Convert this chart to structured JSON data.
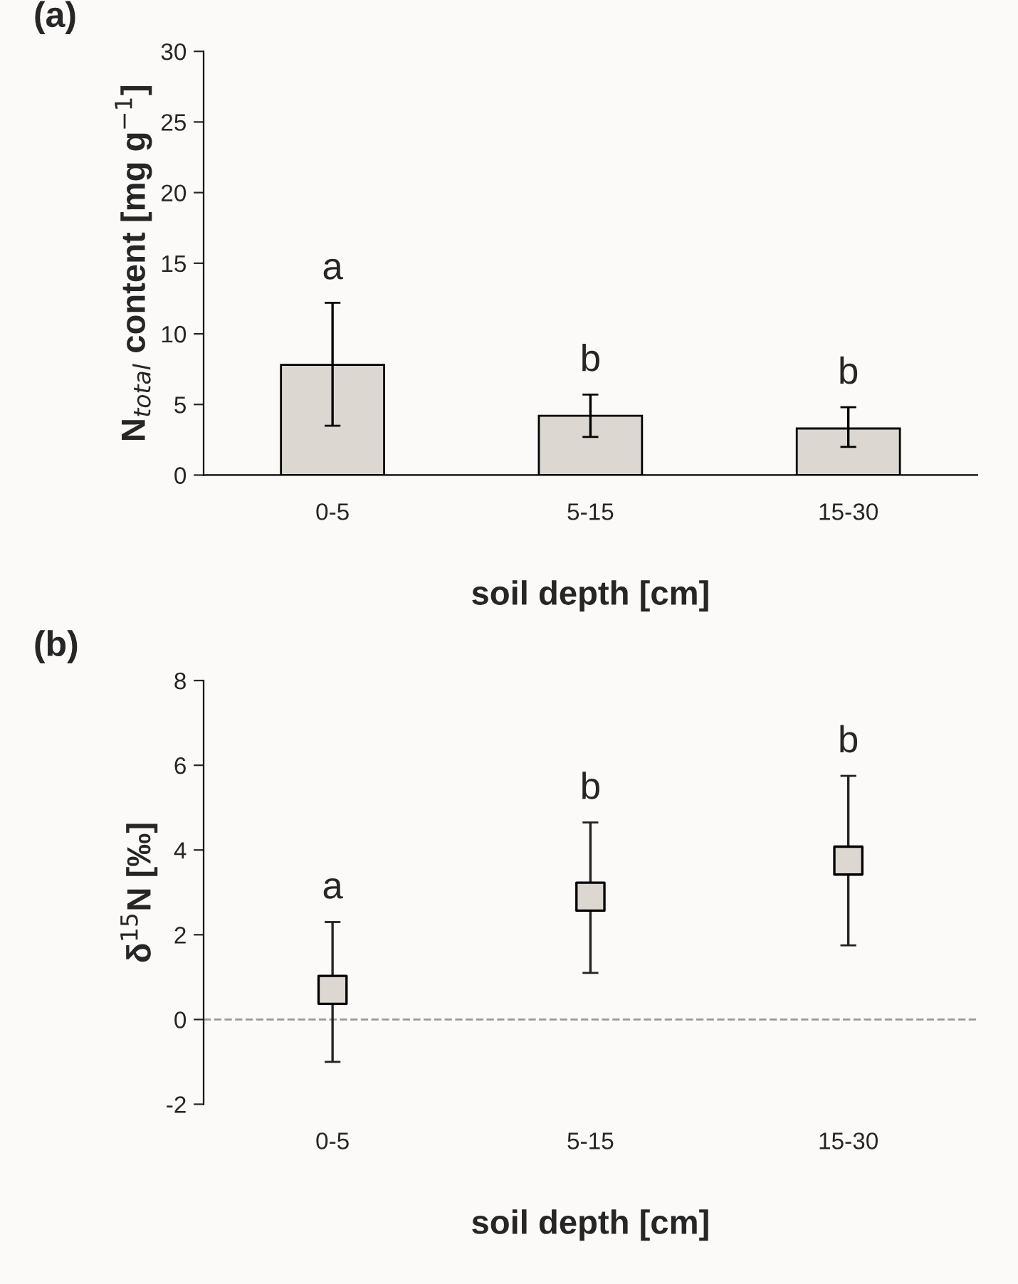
{
  "chart_data": [
    {
      "type": "bar",
      "title": "(a)",
      "xlabel": "soil depth [cm]",
      "ylabel": "N$_{total}$ content [mg g$^{−1}$]",
      "categories": [
        "0-5",
        "5-15",
        "15-30"
      ],
      "values": [
        7.8,
        4.2,
        3.3
      ],
      "color": "#dcd7d1",
      "errors": [
        [
          3.5,
          12.2
        ],
        [
          2.7,
          5.7
        ],
        [
          2.0,
          4.8
        ]
      ],
      "ylim": [
        0,
        30
      ],
      "yticks": [
        0,
        5,
        10,
        15,
        20,
        25,
        30
      ],
      "grid": false,
      "legend": false,
      "annotations": [
        "a",
        "b",
        "b"
      ]
    },
    {
      "type": "scatter",
      "title": "(b)",
      "xlabel": "soil depth [cm]",
      "ylabel": "δ$^{15}$N [‰]",
      "categories": [
        "0-5",
        "5-15",
        "15-30"
      ],
      "values": [
        0.7,
        2.9,
        3.75
      ],
      "color": "#dcd7d1",
      "marker": "square",
      "errors": [
        [
          -1.0,
          2.3
        ],
        [
          1.1,
          4.65
        ],
        [
          1.75,
          5.75
        ]
      ],
      "ylim": [
        -2,
        8
      ],
      "yticks": [
        {
          "value": -2,
          "label": "-2"
        },
        0,
        2,
        4,
        6,
        8
      ],
      "grid": false,
      "legend": false,
      "ref_lines": [
        {
          "axis": "y",
          "value": 0,
          "color": "#999999",
          "line_style": "dashed"
        }
      ],
      "annotations": [
        "a",
        "b",
        "b"
      ]
    }
  ]
}
